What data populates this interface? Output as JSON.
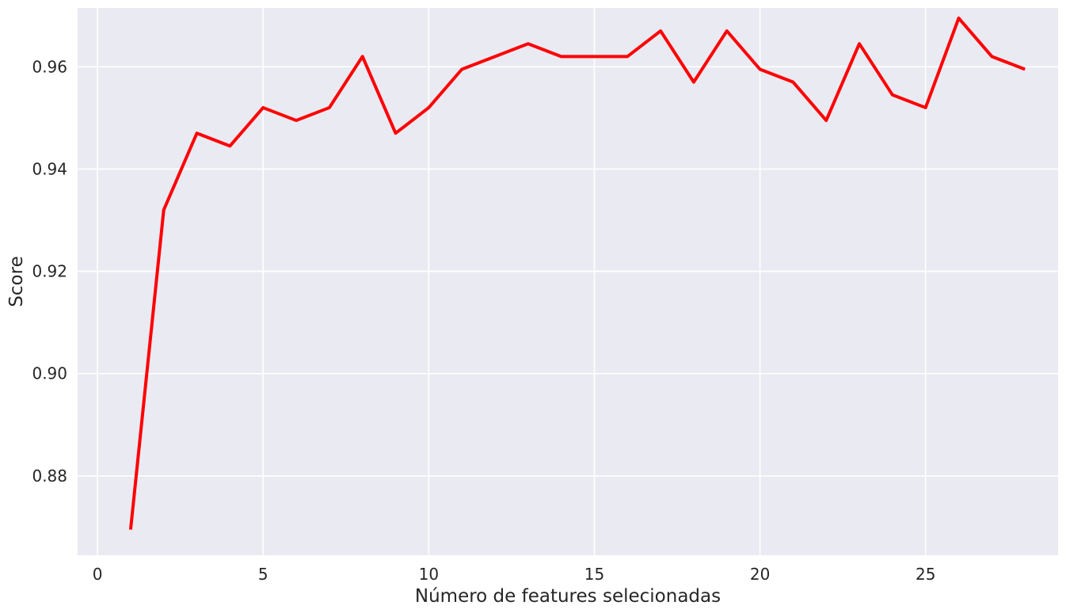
{
  "chart_data": {
    "type": "line",
    "title": "",
    "xlabel": "Número de features selecionadas",
    "ylabel": "Score",
    "xlim": [
      -0.6,
      29.0
    ],
    "ylim": [
      0.8645,
      0.9715
    ],
    "xticks": [
      0,
      5,
      10,
      15,
      20,
      25
    ],
    "yticks": [
      0.88,
      0.9,
      0.92,
      0.94,
      0.96
    ],
    "ytick_labels": [
      "0.88",
      "0.90",
      "0.92",
      "0.94",
      "0.96"
    ],
    "xtick_labels": [
      "0",
      "5",
      "10",
      "15",
      "20",
      "25"
    ],
    "grid": true,
    "background_color": "#eaeaf2",
    "grid_color": "#ffffff",
    "series": [
      {
        "color": "#ff0000",
        "x": [
          1,
          2,
          3,
          4,
          5,
          6,
          7,
          8,
          9,
          10,
          11,
          12,
          13,
          14,
          15,
          16,
          17,
          18,
          19,
          20,
          21,
          22,
          23,
          24,
          25,
          26,
          27,
          28
        ],
        "values": [
          0.8695,
          0.932,
          0.947,
          0.9445,
          0.952,
          0.9495,
          0.952,
          0.962,
          0.947,
          0.952,
          0.9595,
          0.962,
          0.9645,
          0.962,
          0.962,
          0.962,
          0.967,
          0.957,
          0.967,
          0.9595,
          0.957,
          0.9495,
          0.9645,
          0.9545,
          0.952,
          0.9695,
          0.962,
          0.9595
        ]
      }
    ]
  }
}
